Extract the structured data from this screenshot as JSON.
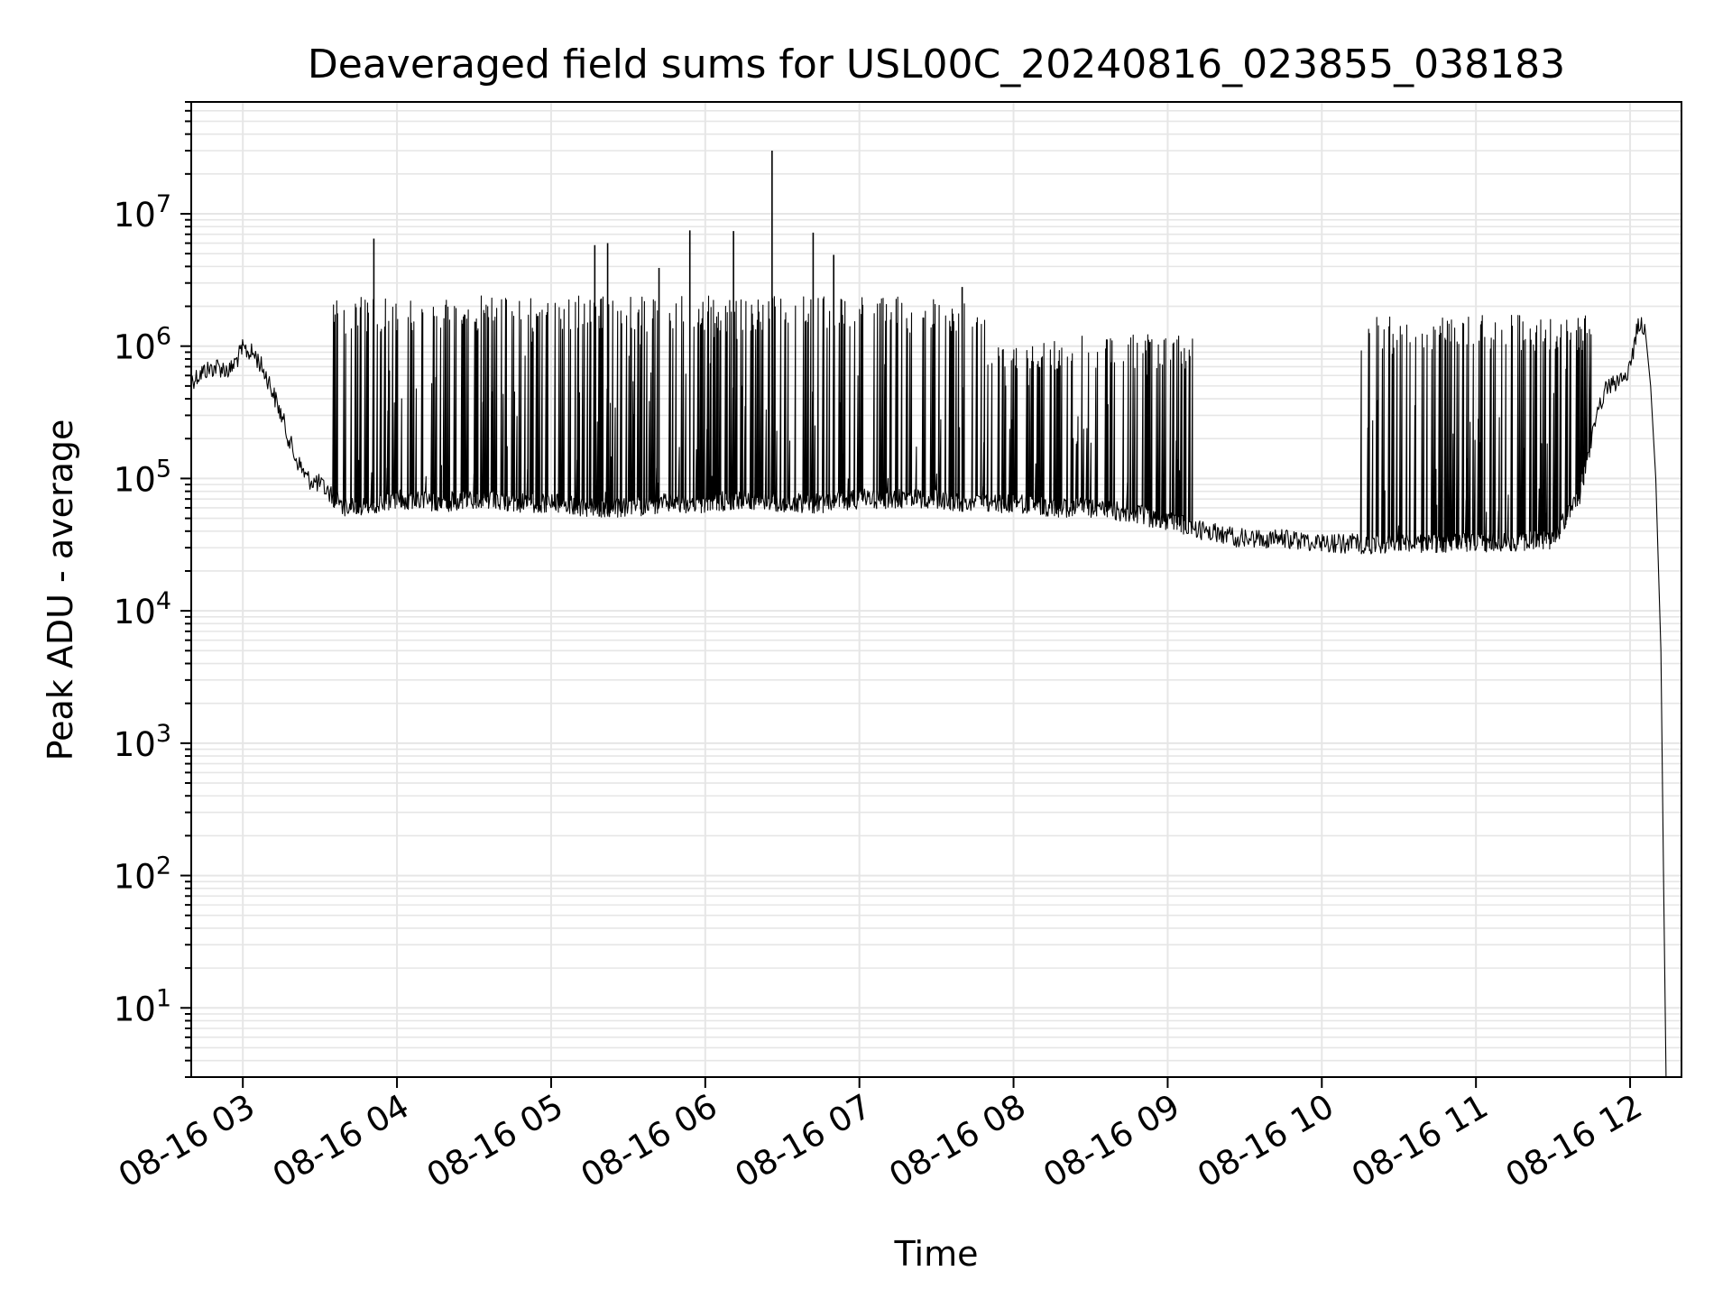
{
  "chart_data": {
    "type": "line",
    "title": "Deaveraged field sums for USL00C_20240816_023855_038183",
    "xlabel": "Time",
    "ylabel": "Peak ADU - average",
    "yscale": "log",
    "ylim": [
      3,
      70000000
    ],
    "xlim": [
      "2024-08-16 02:39:55",
      "2024-08-16 12:20:00"
    ],
    "x_ticks": [
      {
        "time": "2024-08-16 03:00",
        "label": "08-16 03"
      },
      {
        "time": "2024-08-16 04:00",
        "label": "08-16 04"
      },
      {
        "time": "2024-08-16 05:00",
        "label": "08-16 05"
      },
      {
        "time": "2024-08-16 06:00",
        "label": "08-16 06"
      },
      {
        "time": "2024-08-16 07:00",
        "label": "08-16 07"
      },
      {
        "time": "2024-08-16 08:00",
        "label": "08-16 08"
      },
      {
        "time": "2024-08-16 09:00",
        "label": "08-16 09"
      },
      {
        "time": "2024-08-16 10:00",
        "label": "08-16 10"
      },
      {
        "time": "2024-08-16 11:00",
        "label": "08-16 11"
      },
      {
        "time": "2024-08-16 12:00",
        "label": "08-16 12"
      }
    ],
    "y_ticks": [
      {
        "base": "10",
        "exp": "1",
        "value": 10
      },
      {
        "base": "10",
        "exp": "2",
        "value": 100
      },
      {
        "base": "10",
        "exp": "3",
        "value": 1000
      },
      {
        "base": "10",
        "exp": "4",
        "value": 10000
      },
      {
        "base": "10",
        "exp": "5",
        "value": 100000
      },
      {
        "base": "10",
        "exp": "6",
        "value": 1000000
      },
      {
        "base": "10",
        "exp": "7",
        "value": 10000000
      }
    ],
    "grid": true,
    "line_color": "#000000",
    "series": [
      {
        "x": [
          "2024-08-16 02:40",
          "2024-08-16 02:45",
          "2024-08-16 02:50",
          "2024-08-16 02:55",
          "2024-08-16 03:00",
          "2024-08-16 03:05",
          "2024-08-16 03:10",
          "2024-08-16 03:15",
          "2024-08-16 03:20",
          "2024-08-16 03:25",
          "2024-08-16 03:30",
          "2024-08-16 03:33",
          "2024-08-16 03:36",
          "2024-08-16 03:40",
          "2024-08-16 03:45",
          "2024-08-16 03:50",
          "2024-08-16 03:55",
          "2024-08-16 04:00",
          "2024-08-16 04:15",
          "2024-08-16 04:30",
          "2024-08-16 04:45",
          "2024-08-16 05:00",
          "2024-08-16 05:15",
          "2024-08-16 05:30",
          "2024-08-16 05:45",
          "2024-08-16 06:00",
          "2024-08-16 06:15",
          "2024-08-16 06:30",
          "2024-08-16 06:45",
          "2024-08-16 07:00",
          "2024-08-16 07:15",
          "2024-08-16 07:30",
          "2024-08-16 07:45",
          "2024-08-16 08:00",
          "2024-08-16 08:15",
          "2024-08-16 08:30",
          "2024-08-16 08:45",
          "2024-08-16 09:00",
          "2024-08-16 09:15",
          "2024-08-16 09:30",
          "2024-08-16 09:45",
          "2024-08-16 10:00",
          "2024-08-16 10:15",
          "2024-08-16 10:30",
          "2024-08-16 10:45",
          "2024-08-16 11:00",
          "2024-08-16 11:15",
          "2024-08-16 11:30",
          "2024-08-16 11:40",
          "2024-08-16 11:45",
          "2024-08-16 11:50",
          "2024-08-16 11:55",
          "2024-08-16 12:00",
          "2024-08-16 12:03",
          "2024-08-16 12:06",
          "2024-08-16 12:08",
          "2024-08-16 12:10",
          "2024-08-16 12:12",
          "2024-08-16 12:13",
          "2024-08-16 12:14"
        ],
        "values": [
          550000,
          650000,
          700000,
          650000,
          950000,
          850000,
          550000,
          300000,
          150000,
          100000,
          90000,
          80000,
          70000,
          60000,
          60000,
          65000,
          65000,
          70000,
          65000,
          70000,
          65000,
          65000,
          60000,
          60000,
          65000,
          65000,
          70000,
          65000,
          65000,
          70000,
          70000,
          70000,
          65000,
          65000,
          60000,
          60000,
          55000,
          48000,
          40000,
          35000,
          35000,
          33000,
          32000,
          32000,
          32000,
          33000,
          33000,
          35000,
          70000,
          200000,
          450000,
          550000,
          650000,
          1500000,
          1300000,
          500000,
          100000,
          5000,
          100,
          3
        ]
      }
    ],
    "spikes": [
      {
        "x": "2024-08-16 03:51",
        "y": 6500000
      },
      {
        "x": "2024-08-16 05:17",
        "y": 5800000
      },
      {
        "x": "2024-08-16 05:22",
        "y": 6000000
      },
      {
        "x": "2024-08-16 05:42",
        "y": 3900000
      },
      {
        "x": "2024-08-16 05:54",
        "y": 7500000
      },
      {
        "x": "2024-08-16 06:11",
        "y": 7400000
      },
      {
        "x": "2024-08-16 06:26",
        "y": 30000000
      },
      {
        "x": "2024-08-16 06:42",
        "y": 7200000
      },
      {
        "x": "2024-08-16 06:50",
        "y": 4900000
      },
      {
        "x": "2024-08-16 07:40",
        "y": 2800000
      }
    ]
  }
}
